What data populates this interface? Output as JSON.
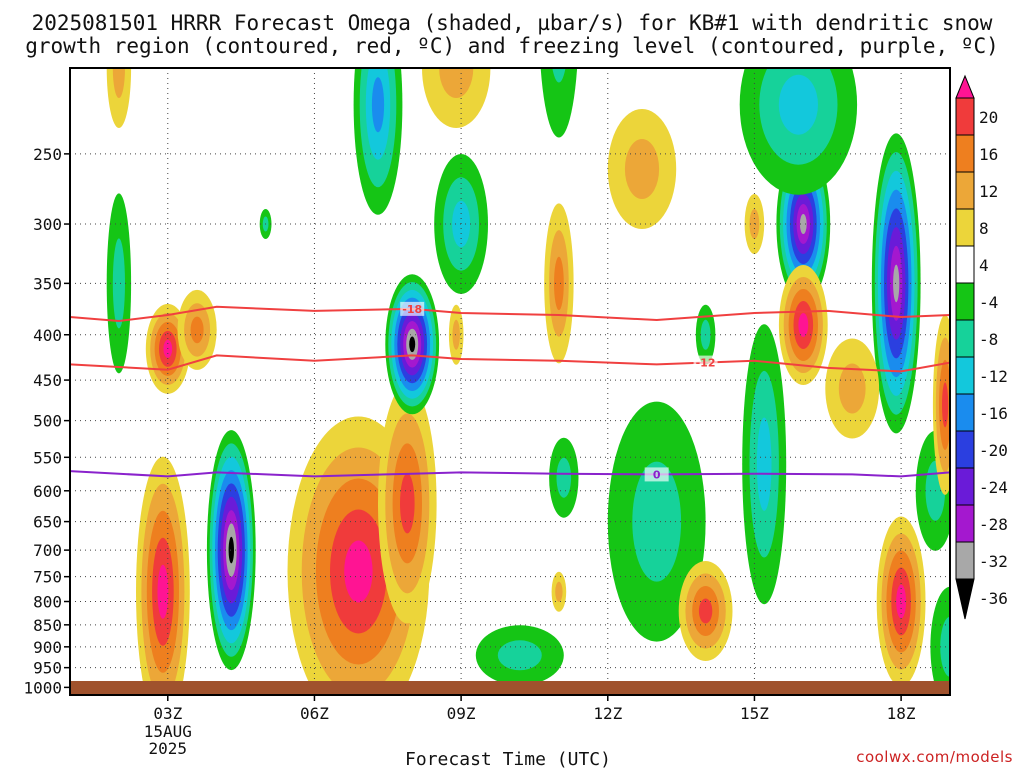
{
  "title_line1": "2025081501 HRRR Forecast Omega (shaded, µbar/s) for KB#1 with dendritic snow",
  "title_line2": "growth region (contoured, red, ºC) and freezing level (contoured, purple, ºC)",
  "credit": "coolwx.com/models",
  "chart_data": {
    "type": "heatmap",
    "title": "2025081501 HRRR Forecast Omega (shaded, µbar/s) for KB#1 with dendritic snow growth region (contoured, red, ºC) and freezing level (contoured, purple, ºC)",
    "xlabel": "Forecast Time (UTC)",
    "ylabel": "",
    "x_range_hours_utc": [
      1,
      19
    ],
    "x_ticks": [
      {
        "hour": 3,
        "label": "03Z",
        "sub": [
          "15AUG",
          "2025"
        ]
      },
      {
        "hour": 6,
        "label": "06Z"
      },
      {
        "hour": 9,
        "label": "09Z"
      },
      {
        "hour": 12,
        "label": "12Z"
      },
      {
        "hour": 15,
        "label": "15Z"
      },
      {
        "hour": 18,
        "label": "18Z"
      }
    ],
    "y_axis": "pressure (hPa), inverted",
    "y_range": [
      1020,
      200
    ],
    "y_ticks": [
      250,
      300,
      350,
      400,
      450,
      500,
      550,
      600,
      650,
      700,
      750,
      800,
      850,
      900,
      950,
      1000
    ],
    "grid": true,
    "colorbar": {
      "unit": "µbar/s",
      "levels": [
        20,
        16,
        12,
        8,
        4,
        -4,
        -8,
        -12,
        -16,
        -20,
        -24,
        -28,
        -32,
        -36
      ],
      "colors": [
        "#ff1493",
        "#f03b3b",
        "#ee7f1f",
        "#eca738",
        "#ecd53a",
        "#ffffff",
        "#15c515",
        "#16d29a",
        "#13c8dc",
        "#1a8cee",
        "#2b3fe0",
        "#6a1bd8",
        "#a418cf",
        "#a8a8a8",
        "#000000"
      ]
    },
    "omega_features": [
      {
        "hour": 2.9,
        "p": 790,
        "value": 20,
        "desc": "strong upward-positive max (magenta)"
      },
      {
        "hour": 4.3,
        "p": 720,
        "value": -36,
        "desc": "strong negative core (black)"
      },
      {
        "hour": 3.0,
        "p": 420,
        "value": 20,
        "desc": "positive max near -12 contour"
      },
      {
        "hour": 6.8,
        "p": 760,
        "value": 20,
        "desc": "broad positive max"
      },
      {
        "hour": 8.0,
        "p": 410,
        "value": -36,
        "desc": "strong negative core (black)"
      },
      {
        "hour": 16.1,
        "p": 300,
        "value": -32,
        "desc": "negative core (gray)"
      },
      {
        "hour": 18.0,
        "p": 380,
        "value": -32,
        "desc": "negative core"
      },
      {
        "hour": 18.0,
        "p": 800,
        "value": 20,
        "desc": "positive max"
      },
      {
        "hour": 16.0,
        "p": 390,
        "value": 20,
        "desc": "positive max"
      }
    ],
    "contours": [
      {
        "name": "-18",
        "color": "#f04040",
        "label": "-18",
        "label_hour": 8.0,
        "points": [
          [
            1,
            382
          ],
          [
            2,
            386
          ],
          [
            3,
            380
          ],
          [
            4,
            372
          ],
          [
            6,
            376
          ],
          [
            8,
            374
          ],
          [
            9,
            378
          ],
          [
            11,
            380
          ],
          [
            13,
            385
          ],
          [
            15,
            378
          ],
          [
            16.5,
            376
          ],
          [
            18,
            382
          ],
          [
            19,
            380
          ]
        ]
      },
      {
        "name": "-12",
        "color": "#f04040",
        "label": "-12",
        "label_hour": 14.0,
        "points": [
          [
            1,
            432
          ],
          [
            3,
            438
          ],
          [
            4,
            422
          ],
          [
            6,
            428
          ],
          [
            8,
            422
          ],
          [
            9,
            426
          ],
          [
            11,
            428
          ],
          [
            13,
            432
          ],
          [
            15,
            428
          ],
          [
            16.5,
            436
          ],
          [
            18,
            440
          ],
          [
            19,
            430
          ]
        ]
      },
      {
        "name": "0",
        "color": "#8a22cc",
        "label": "0",
        "label_hour": 13.0,
        "points": [
          [
            1,
            570
          ],
          [
            3,
            578
          ],
          [
            4,
            572
          ],
          [
            6,
            578
          ],
          [
            8,
            574
          ],
          [
            9,
            572
          ],
          [
            11,
            574
          ],
          [
            13,
            575
          ],
          [
            15,
            574
          ],
          [
            17,
            575
          ],
          [
            18,
            578
          ],
          [
            19,
            572
          ]
        ]
      }
    ]
  }
}
